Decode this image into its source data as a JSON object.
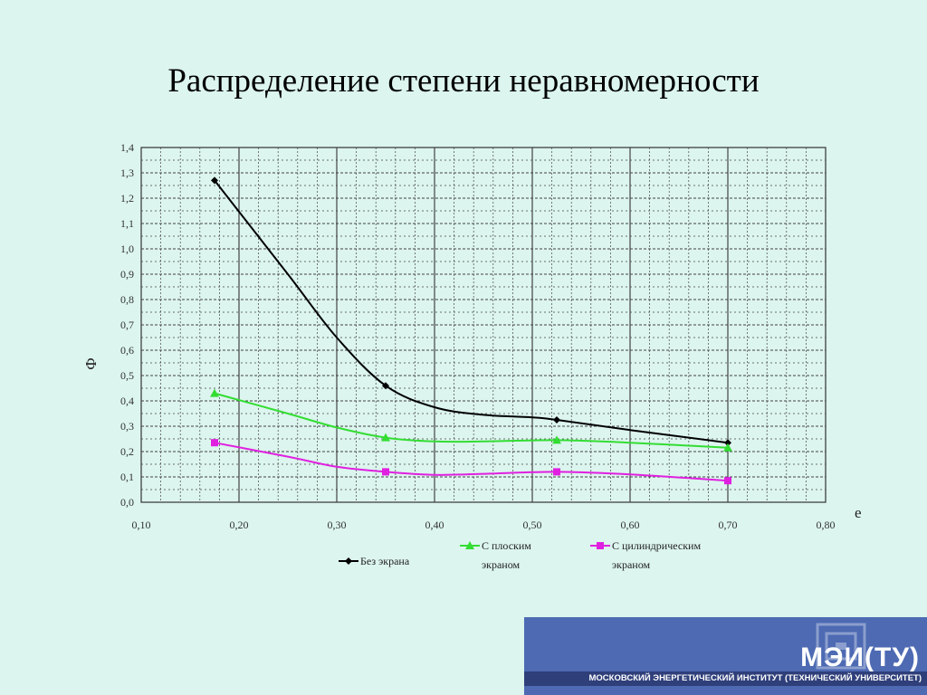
{
  "slide": {
    "title": "Распределение степени неравномерности"
  },
  "chart_data": {
    "type": "line",
    "title": "",
    "xlabel": "e",
    "ylabel": "Ф",
    "xlim": [
      0.1,
      0.8
    ],
    "ylim": [
      0.0,
      1.4
    ],
    "x_ticks": [
      "0,10",
      "0,20",
      "0,30",
      "0,40",
      "0,50",
      "0,60",
      "0,70",
      "0,80"
    ],
    "y_ticks": [
      "0,0",
      "0,1",
      "0,2",
      "0,3",
      "0,4",
      "0,5",
      "0,6",
      "0,7",
      "0,8",
      "0,9",
      "1,0",
      "1,1",
      "1,2",
      "1,3",
      "1,4"
    ],
    "grid": true,
    "legend_position": "bottom",
    "series": [
      {
        "name": "Без экрана",
        "color": "#000000",
        "marker": "diamond",
        "x": [
          0.175,
          0.35,
          0.525,
          0.7
        ],
        "y": [
          1.27,
          0.46,
          0.325,
          0.235
        ],
        "curve": [
          [
            0.175,
            1.27
          ],
          [
            0.25,
            0.9
          ],
          [
            0.3,
            0.65
          ],
          [
            0.35,
            0.46
          ],
          [
            0.4,
            0.375
          ],
          [
            0.45,
            0.345
          ],
          [
            0.5,
            0.335
          ],
          [
            0.525,
            0.325
          ],
          [
            0.6,
            0.285
          ],
          [
            0.7,
            0.235
          ]
        ]
      },
      {
        "name": "С плоским экраном",
        "color": "#33dd33",
        "marker": "triangle",
        "x": [
          0.175,
          0.35,
          0.525,
          0.7
        ],
        "y": [
          0.43,
          0.255,
          0.245,
          0.215
        ],
        "curve": [
          [
            0.175,
            0.43
          ],
          [
            0.25,
            0.35
          ],
          [
            0.3,
            0.295
          ],
          [
            0.35,
            0.255
          ],
          [
            0.4,
            0.24
          ],
          [
            0.45,
            0.24
          ],
          [
            0.525,
            0.245
          ],
          [
            0.6,
            0.235
          ],
          [
            0.7,
            0.215
          ]
        ]
      },
      {
        "name": "С цилиндрическим экраном",
        "color": "#e020e0",
        "marker": "square",
        "x": [
          0.175,
          0.35,
          0.525,
          0.7
        ],
        "y": [
          0.235,
          0.12,
          0.12,
          0.085
        ],
        "curve": [
          [
            0.175,
            0.235
          ],
          [
            0.25,
            0.18
          ],
          [
            0.3,
            0.14
          ],
          [
            0.35,
            0.12
          ],
          [
            0.4,
            0.108
          ],
          [
            0.45,
            0.112
          ],
          [
            0.525,
            0.12
          ],
          [
            0.6,
            0.11
          ],
          [
            0.7,
            0.085
          ]
        ]
      }
    ],
    "legend": [
      {
        "line1": "Без экрана",
        "line2": ""
      },
      {
        "line1": "С плоским",
        "line2": "экраном"
      },
      {
        "line1": "С цилиндрическим",
        "line2": "экраном"
      }
    ]
  },
  "logo": {
    "main": "МЭИ(ТУ)",
    "sub": "МОСКОВСКИЙ ЭНЕРГЕТИЧЕСКИЙ ИНСТИТУТ (ТЕХНИЧЕСКИЙ УНИВЕРСИТЕТ)"
  }
}
